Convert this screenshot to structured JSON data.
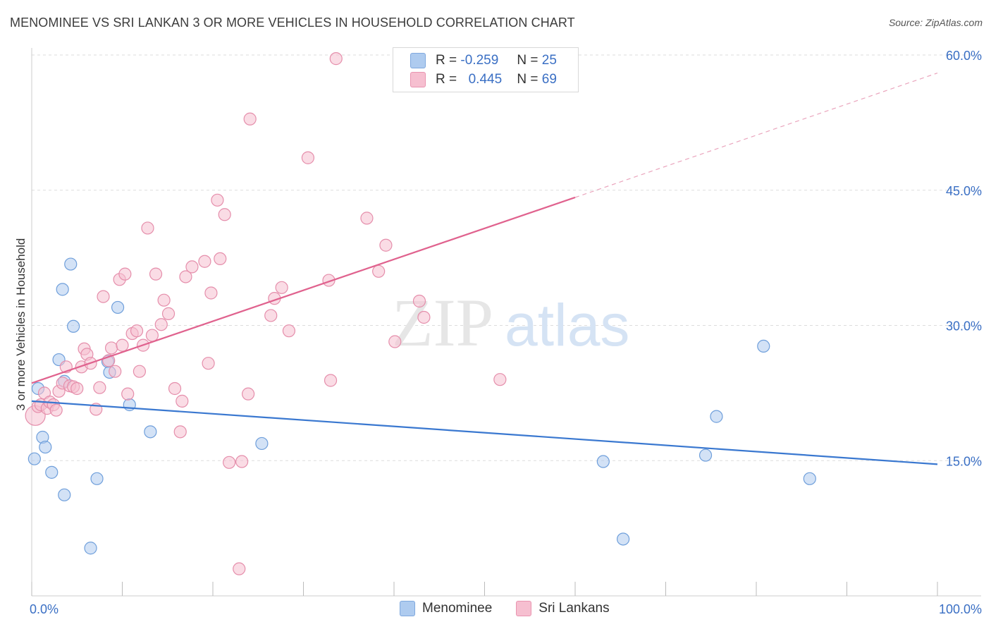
{
  "title": "MENOMINEE VS SRI LANKAN 3 OR MORE VEHICLES IN HOUSEHOLD CORRELATION CHART",
  "source": "Source: ZipAtlas.com",
  "watermark": {
    "zip": "ZIP",
    "atlas": "atlas"
  },
  "legend": {
    "r_label": "R =",
    "n_label": "N =",
    "series": [
      {
        "r": "-0.259",
        "n": "25",
        "color": "#aecbef",
        "border": "#7fa8de"
      },
      {
        "r": "0.445",
        "n": "69",
        "color": "#f6bfd0",
        "border": "#e994b0"
      }
    ]
  },
  "bottom_legend": [
    "Menominee",
    "Sri Lankans"
  ],
  "chart_data": {
    "type": "scatter",
    "title": "MENOMINEE VS SRI LANKAN 3 OR MORE VEHICLES IN HOUSEHOLD CORRELATION CHART",
    "xlabel": "",
    "ylabel": "3 or more Vehicles in Household",
    "xlim": [
      0,
      100
    ],
    "ylim": [
      0,
      60
    ],
    "x_ticks": [
      "0.0%",
      "100.0%"
    ],
    "y_ticks": [
      {
        "value": 15,
        "label": "15.0%"
      },
      {
        "value": 30,
        "label": "30.0%"
      },
      {
        "value": 45,
        "label": "45.0%"
      },
      {
        "value": 60,
        "label": "60.0%"
      }
    ],
    "grid": true,
    "series": [
      {
        "name": "Menominee",
        "color": "#aecbef",
        "stroke": "#6f9fdb",
        "line_color": "#3a78d0",
        "trend": [
          [
            0,
            21.6
          ],
          [
            100,
            14.6
          ]
        ],
        "points": [
          [
            0.3,
            15.2
          ],
          [
            0.7,
            23.0
          ],
          [
            1.2,
            17.6
          ],
          [
            1.5,
            16.5
          ],
          [
            2.2,
            13.7
          ],
          [
            3.0,
            26.2
          ],
          [
            3.4,
            34.0
          ],
          [
            3.6,
            11.2
          ],
          [
            4.3,
            36.8
          ],
          [
            4.6,
            29.9
          ],
          [
            6.5,
            5.3
          ],
          [
            7.2,
            13.0
          ],
          [
            8.4,
            26.0
          ],
          [
            8.6,
            24.8
          ],
          [
            9.5,
            32.0
          ],
          [
            10.8,
            21.2
          ],
          [
            13.1,
            18.2
          ],
          [
            25.4,
            16.9
          ],
          [
            63.1,
            14.9
          ],
          [
            65.3,
            6.3
          ],
          [
            74.4,
            15.6
          ],
          [
            75.6,
            19.9
          ],
          [
            80.8,
            27.7
          ],
          [
            85.9,
            13.0
          ],
          [
            3.6,
            23.8
          ]
        ]
      },
      {
        "name": "Sri Lankans",
        "color": "#f6bfd0",
        "stroke": "#e58eab",
        "line_color": "#e0628e",
        "trend": [
          [
            0,
            23.6
          ],
          [
            60,
            44.2
          ]
        ],
        "trend_dashed": [
          [
            60,
            44.2
          ],
          [
            100,
            58.0
          ]
        ],
        "points": [
          [
            0.4,
            20.0
          ],
          [
            0.7,
            21.0
          ],
          [
            1.0,
            21.2
          ],
          [
            1.4,
            22.5
          ],
          [
            1.7,
            20.8
          ],
          [
            2.0,
            21.5
          ],
          [
            2.4,
            21.2
          ],
          [
            2.7,
            20.6
          ],
          [
            3.0,
            22.7
          ],
          [
            3.4,
            23.6
          ],
          [
            3.8,
            25.4
          ],
          [
            4.2,
            23.3
          ],
          [
            4.6,
            23.2
          ],
          [
            5.0,
            23.0
          ],
          [
            5.5,
            25.4
          ],
          [
            5.8,
            27.4
          ],
          [
            6.1,
            26.8
          ],
          [
            6.5,
            25.8
          ],
          [
            7.1,
            20.7
          ],
          [
            7.5,
            23.1
          ],
          [
            7.9,
            33.2
          ],
          [
            8.5,
            26.1
          ],
          [
            8.8,
            27.5
          ],
          [
            9.2,
            24.9
          ],
          [
            9.7,
            35.1
          ],
          [
            10.0,
            27.8
          ],
          [
            10.3,
            35.7
          ],
          [
            10.6,
            22.4
          ],
          [
            11.1,
            29.1
          ],
          [
            11.6,
            29.4
          ],
          [
            11.9,
            24.9
          ],
          [
            12.3,
            27.8
          ],
          [
            12.8,
            40.8
          ],
          [
            13.3,
            28.9
          ],
          [
            13.7,
            35.7
          ],
          [
            14.3,
            30.1
          ],
          [
            14.6,
            32.8
          ],
          [
            15.1,
            31.3
          ],
          [
            15.8,
            23.0
          ],
          [
            16.4,
            18.2
          ],
          [
            16.6,
            21.6
          ],
          [
            17.0,
            35.4
          ],
          [
            17.7,
            36.5
          ],
          [
            19.1,
            37.1
          ],
          [
            19.5,
            25.8
          ],
          [
            19.8,
            33.6
          ],
          [
            20.5,
            43.9
          ],
          [
            20.8,
            37.4
          ],
          [
            21.3,
            42.3
          ],
          [
            21.8,
            14.8
          ],
          [
            22.9,
            3.0
          ],
          [
            23.2,
            14.9
          ],
          [
            23.9,
            22.4
          ],
          [
            24.1,
            52.9
          ],
          [
            26.4,
            31.1
          ],
          [
            26.8,
            33.0
          ],
          [
            27.6,
            34.2
          ],
          [
            28.4,
            29.4
          ],
          [
            30.5,
            48.6
          ],
          [
            32.8,
            35.0
          ],
          [
            33.0,
            23.9
          ],
          [
            33.6,
            59.6
          ],
          [
            37.0,
            41.9
          ],
          [
            38.3,
            36.0
          ],
          [
            39.1,
            38.9
          ],
          [
            40.1,
            28.2
          ],
          [
            42.8,
            32.7
          ],
          [
            43.3,
            30.9
          ],
          [
            51.7,
            24.0
          ]
        ]
      }
    ]
  }
}
